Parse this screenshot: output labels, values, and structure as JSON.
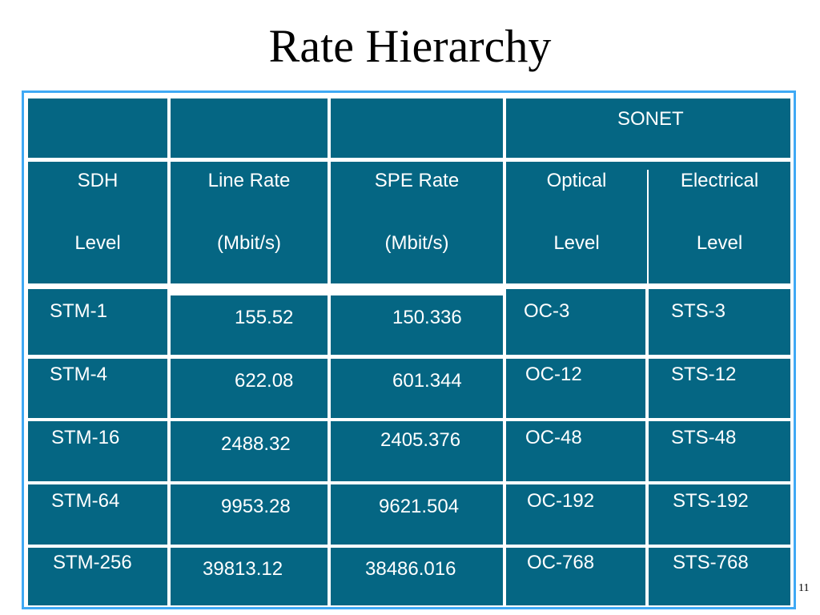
{
  "slide": {
    "title": "Rate Hierarchy",
    "page_number": "11"
  },
  "table": {
    "group_header": "SONET",
    "columns": [
      {
        "line1": "SDH",
        "line2": "Level"
      },
      {
        "line1": "Line Rate",
        "line2": "(Mbit/s)"
      },
      {
        "line1": "SPE Rate",
        "line2": "(Mbit/s)"
      },
      {
        "line1": "Optical",
        "line2": "Level"
      },
      {
        "line1": "Electrical",
        "line2": "Level"
      }
    ],
    "rows": [
      {
        "sdh": "STM-1",
        "line_rate": "155.52",
        "spe_rate": "150.336",
        "optical": "OC-3",
        "electrical": "STS-3"
      },
      {
        "sdh": "STM-4",
        "line_rate": "622.08",
        "spe_rate": "601.344",
        "optical": "OC-12",
        "electrical": "STS-12"
      },
      {
        "sdh": "STM-16",
        "line_rate": "2488.32",
        "spe_rate": "2405.376",
        "optical": "OC-48",
        "electrical": "STS-48"
      },
      {
        "sdh": "STM-64",
        "line_rate": "9953.28",
        "spe_rate": "9621.504",
        "optical": "OC-192",
        "electrical": "STS-192"
      },
      {
        "sdh": "STM-256",
        "line_rate": "39813.12",
        "spe_rate": "38486.016",
        "optical": "OC-768",
        "electrical": "STS-768"
      }
    ]
  },
  "colors": {
    "cell_fill": "#056683",
    "frame_border": "#3fa9f5",
    "text": "#ffffff"
  }
}
